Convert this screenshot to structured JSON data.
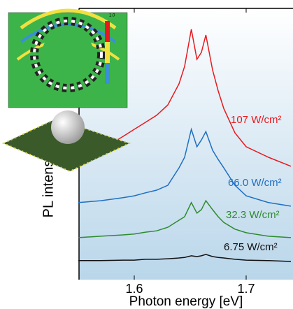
{
  "chart_data": {
    "type": "line",
    "xlabel": "Photon energy [eV]",
    "ylabel": "PL intensity",
    "x": [
      1.55,
      1.57,
      1.59,
      1.6,
      1.61,
      1.62,
      1.63,
      1.64,
      1.645,
      1.651,
      1.656,
      1.66,
      1.664,
      1.67,
      1.675,
      1.68,
      1.69,
      1.7,
      1.72,
      1.74
    ],
    "series": [
      {
        "name": "107 W/cm²",
        "color": "#e8191e",
        "values": [
          43.3,
          47.7,
          52.8,
          55.4,
          58,
          60.6,
          64.4,
          72.2,
          78.6,
          92.3,
          81.2,
          83.8,
          90.2,
          77.3,
          69.6,
          63.1,
          54.1,
          49,
          45.1,
          41.8
        ]
      },
      {
        "name": "66.0 W/cm²",
        "color": "#1f6fc2",
        "values": [
          28.4,
          29.1,
          30.2,
          30.9,
          32,
          33,
          34.8,
          41.2,
          45.1,
          55.4,
          49,
          51.5,
          54.6,
          47.7,
          44.3,
          41.2,
          34.8,
          30.9,
          28.4,
          27.1
        ]
      },
      {
        "name": "32.3 W/cm²",
        "color": "#2e8b2e",
        "values": [
          15.5,
          16,
          16.5,
          16.8,
          17.5,
          18,
          19.3,
          21.9,
          23.2,
          28.4,
          24.5,
          25.8,
          29.1,
          25.8,
          23.2,
          21.1,
          18.6,
          17.3,
          16,
          15.5
        ]
      },
      {
        "name": "6.75 W/cm²",
        "color": "#111111",
        "values": [
          7,
          7,
          7.2,
          7.2,
          7.5,
          7.5,
          7.7,
          8,
          8.2,
          8.8,
          8.5,
          8.8,
          9.3,
          8.5,
          8.2,
          8,
          7.5,
          7.2,
          7,
          6.7
        ]
      }
    ],
    "xlim": [
      1.55,
      1.74
    ],
    "xticks": [
      1.6,
      1.7
    ],
    "ylim": [
      0,
      100
    ],
    "inset_colorbar_label": "1.0"
  }
}
